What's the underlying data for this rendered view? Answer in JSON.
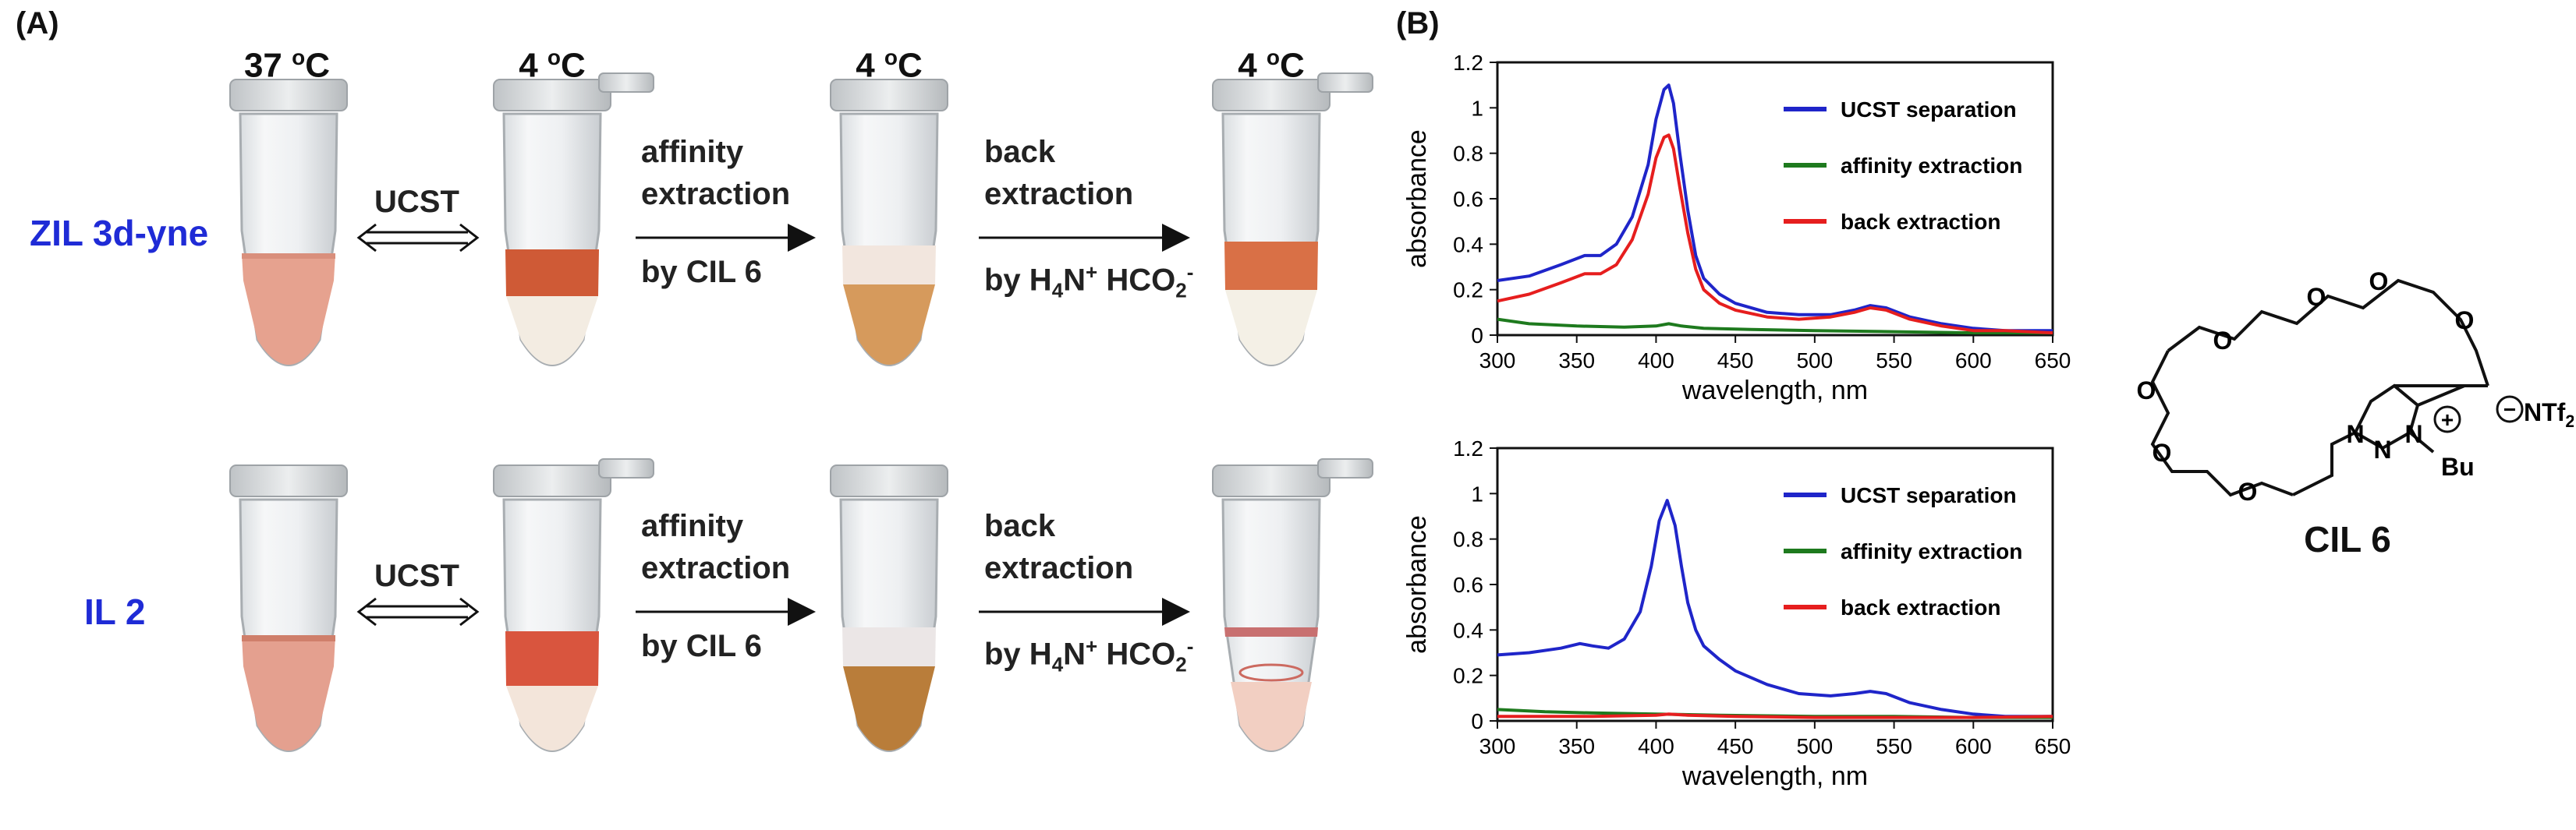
{
  "panel_a": {
    "label": "(A)",
    "temperatures": [
      "37 °C",
      "4 °C",
      "4 °C",
      "4 °C"
    ],
    "temp_value": [
      "37",
      "4",
      "4",
      "4"
    ],
    "temp_unit": "C",
    "temp_deg": "o",
    "rows": [
      {
        "label": "ZIL 3d-yne"
      },
      {
        "label": "IL 2"
      }
    ],
    "step1": "UCST",
    "step2": [
      "affinity",
      "extraction",
      "by CIL 6"
    ],
    "step3_lines": [
      "back",
      "extraction"
    ],
    "step3_by": "by H",
    "step3_sub4": "4",
    "step3_N": "N",
    "step3_plus": "+",
    "step3_formate": " HCO",
    "step3_sub2": "2",
    "step3_minus": "-"
  },
  "panel_b": {
    "label": "(B)"
  },
  "structure": {
    "label": "CIL 6",
    "atoms": {
      "o": "O",
      "n": "N",
      "bu": "Bu",
      "ntf": "NTf",
      "ntf_sub": "2",
      "plus": "+",
      "minus": "−"
    }
  },
  "chart_data": [
    {
      "type": "line",
      "title": "",
      "xlabel": "wavelength, nm",
      "ylabel": "absorbance",
      "xlim": [
        300,
        650
      ],
      "ylim": [
        0,
        1.2
      ],
      "xticks": [
        300,
        350,
        400,
        450,
        500,
        550,
        600,
        650
      ],
      "yticks": [
        0,
        0.2,
        0.4,
        0.6,
        0.8,
        1,
        1.2
      ],
      "legend_position": "top-right",
      "series": [
        {
          "name": "UCST separation",
          "color": "#1f25c9",
          "x": [
            300,
            320,
            340,
            355,
            365,
            375,
            385,
            395,
            400,
            405,
            408,
            411,
            415,
            420,
            425,
            430,
            440,
            450,
            470,
            490,
            510,
            525,
            535,
            545,
            560,
            580,
            600,
            620,
            650
          ],
          "y": [
            0.24,
            0.26,
            0.31,
            0.35,
            0.35,
            0.4,
            0.52,
            0.75,
            0.95,
            1.08,
            1.1,
            1.02,
            0.8,
            0.55,
            0.35,
            0.25,
            0.18,
            0.14,
            0.1,
            0.09,
            0.09,
            0.11,
            0.13,
            0.12,
            0.08,
            0.05,
            0.03,
            0.02,
            0.02
          ]
        },
        {
          "name": "affinity extraction",
          "color": "#1e7a1e",
          "x": [
            300,
            320,
            350,
            380,
            400,
            408,
            416,
            430,
            460,
            500,
            550,
            600,
            650
          ],
          "y": [
            0.07,
            0.05,
            0.04,
            0.035,
            0.04,
            0.05,
            0.04,
            0.03,
            0.025,
            0.02,
            0.015,
            0.01,
            0.01
          ]
        },
        {
          "name": "back extraction",
          "color": "#e61e1e",
          "x": [
            300,
            320,
            340,
            355,
            365,
            375,
            385,
            395,
            400,
            405,
            408,
            411,
            415,
            420,
            425,
            430,
            440,
            450,
            470,
            490,
            510,
            525,
            535,
            545,
            560,
            580,
            600,
            620,
            650
          ],
          "y": [
            0.15,
            0.18,
            0.23,
            0.27,
            0.27,
            0.31,
            0.42,
            0.62,
            0.78,
            0.87,
            0.88,
            0.82,
            0.65,
            0.45,
            0.29,
            0.2,
            0.14,
            0.11,
            0.08,
            0.07,
            0.08,
            0.1,
            0.12,
            0.11,
            0.07,
            0.04,
            0.02,
            0.02,
            0.01
          ]
        }
      ]
    },
    {
      "type": "line",
      "title": "",
      "xlabel": "wavelength, nm",
      "ylabel": "absorbance",
      "xlim": [
        300,
        650
      ],
      "ylim": [
        0,
        1.2
      ],
      "xticks": [
        300,
        350,
        400,
        450,
        500,
        550,
        600,
        650
      ],
      "yticks": [
        0,
        0.2,
        0.4,
        0.6,
        0.8,
        1,
        1.2
      ],
      "legend_position": "top-right",
      "series": [
        {
          "name": "UCST separation",
          "color": "#1f25c9",
          "x": [
            300,
            320,
            340,
            352,
            360,
            370,
            380,
            390,
            397,
            402,
            407,
            412,
            416,
            420,
            425,
            430,
            440,
            450,
            470,
            490,
            510,
            525,
            535,
            545,
            560,
            580,
            600,
            620,
            650
          ],
          "y": [
            0.29,
            0.3,
            0.32,
            0.34,
            0.33,
            0.32,
            0.36,
            0.48,
            0.68,
            0.88,
            0.97,
            0.86,
            0.68,
            0.52,
            0.4,
            0.33,
            0.27,
            0.22,
            0.16,
            0.12,
            0.11,
            0.12,
            0.13,
            0.12,
            0.08,
            0.05,
            0.03,
            0.02,
            0.02
          ]
        },
        {
          "name": "affinity extraction",
          "color": "#1e7a1e",
          "x": [
            300,
            330,
            360,
            400,
            440,
            500,
            550,
            600,
            650
          ],
          "y": [
            0.05,
            0.04,
            0.035,
            0.03,
            0.025,
            0.02,
            0.02,
            0.015,
            0.015
          ]
        },
        {
          "name": "back extraction",
          "color": "#e61e1e",
          "x": [
            300,
            330,
            360,
            400,
            408,
            420,
            450,
            500,
            550,
            600,
            650
          ],
          "y": [
            0.02,
            0.02,
            0.02,
            0.025,
            0.03,
            0.025,
            0.02,
            0.015,
            0.015,
            0.015,
            0.02
          ]
        }
      ]
    }
  ]
}
